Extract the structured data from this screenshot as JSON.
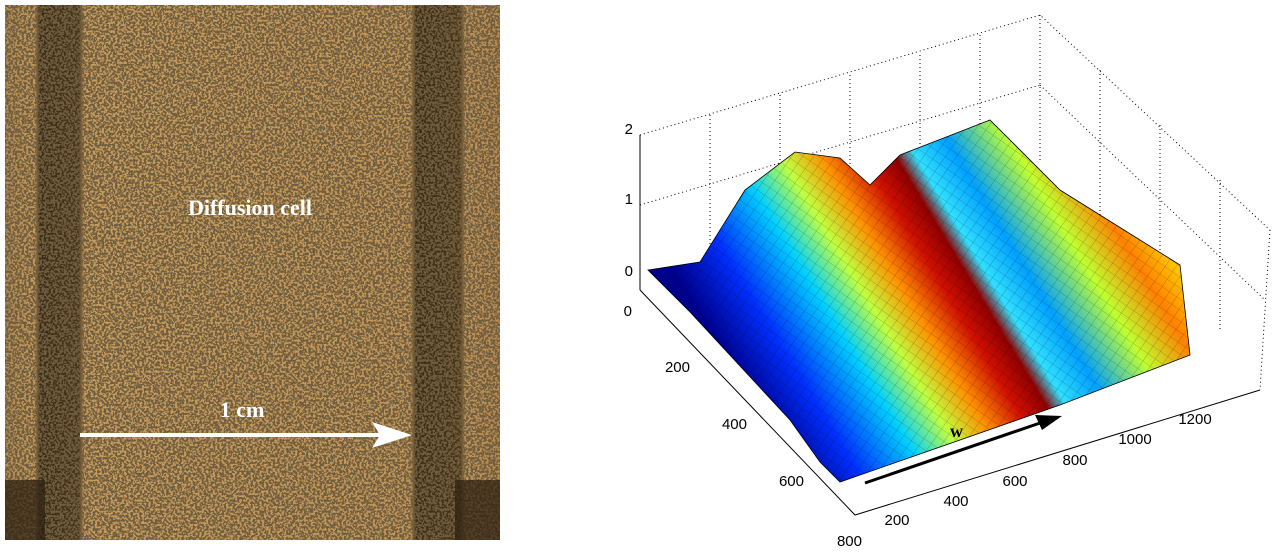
{
  "photo": {
    "label": "Diffusion cell",
    "scale_label": "1 cm"
  },
  "surface_plot": {
    "annotation": "w",
    "z_ticks": [
      0,
      1,
      2
    ],
    "y_ticks": [
      0,
      200,
      400,
      600,
      800
    ],
    "x_ticks": [
      200,
      400,
      600,
      800,
      1000,
      1200
    ]
  }
}
